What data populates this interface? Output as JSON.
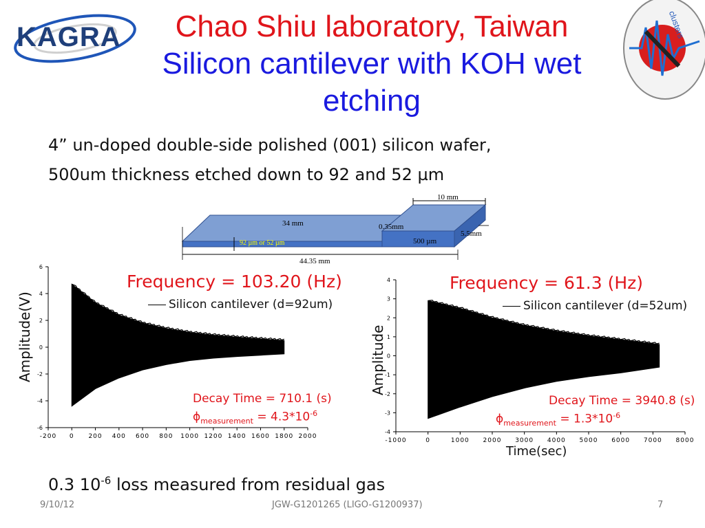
{
  "header": {
    "logo_text": "KAGRA",
    "title_line1": "Chao Shiu laboratory, Taiwan",
    "title_line2": "Silicon cantilever with KOH wet etching",
    "emblem_text": "clusters"
  },
  "body": {
    "line1": "4” un-doped double-side polished (001) silicon wafer,",
    "line2": "500um thickness etched down to 92 and 52 µm"
  },
  "diagram": {
    "dim_width": "10 mm",
    "dim_thin_length": "34 mm",
    "dim_step": "0.35mm",
    "dim_thick_length": "5.5mm",
    "dim_thin_thickness": "92 µm  or 52 µm",
    "dim_thick_thickness": "500 µm",
    "dim_total_length": "44.35 mm",
    "colors": {
      "top": "#7f9fd3",
      "side": "#4472c4",
      "edge": "#2f4f8f",
      "label_yellow": "#ffff00"
    }
  },
  "charts": {
    "left": {
      "freq_label": "Frequency = 103.20 (Hz)",
      "legend": "Silicon cantilever (d=92um)",
      "decay": "Decay Time = 710.1 (s)",
      "phi_symbol": "ϕ",
      "phi_sub": "measurement",
      "phi_value": " = 4.3*10",
      "phi_exp": "-6",
      "ylabel": "Amplitude(V)"
    },
    "right": {
      "freq_label": "Frequency = 61.3 (Hz)",
      "legend": "Silicon cantilever (d=52um)",
      "decay": "Decay Time = 3940.8 (s)",
      "phi_symbol": "ϕ",
      "phi_sub": "measurement",
      "phi_value": " = 1.3*10",
      "phi_exp": "-6",
      "ylabel": "Amplitude",
      "xlabel": "Time(sec)"
    }
  },
  "chart_data": [
    {
      "type": "area",
      "title": "Frequency = 103.20 (Hz)",
      "xlabel": "",
      "ylabel": "Amplitude(V)",
      "xlim": [
        -200,
        2000
      ],
      "ylim": [
        -6,
        6
      ],
      "x_ticks": [
        -200,
        0,
        200,
        400,
        600,
        800,
        1000,
        1200,
        1400,
        1600,
        1800,
        2000
      ],
      "y_ticks": [
        -6,
        -4,
        -2,
        0,
        2,
        4,
        6
      ],
      "series": [
        {
          "name": "Silicon cantilever (d=92um)",
          "x": [
            0,
            200,
            400,
            600,
            800,
            1000,
            1200,
            1400,
            1600,
            1800
          ],
          "upper": [
            4.7,
            3.3,
            2.4,
            1.8,
            1.4,
            1.1,
            0.9,
            0.75,
            0.62,
            0.5
          ],
          "lower": [
            -4.4,
            -3.1,
            -2.3,
            -1.7,
            -1.3,
            -1.0,
            -0.82,
            -0.7,
            -0.6,
            -0.5
          ]
        }
      ],
      "grid": false,
      "legend_placement": "top-right"
    },
    {
      "type": "area",
      "title": "Frequency = 61.3 (Hz)",
      "xlabel": "Time(sec)",
      "ylabel": "Amplitude",
      "xlim": [
        -1000,
        8000
      ],
      "ylim": [
        -4,
        4
      ],
      "x_ticks": [
        -1000,
        0,
        1000,
        2000,
        3000,
        4000,
        5000,
        6000,
        7000,
        8000
      ],
      "y_ticks": [
        -4,
        -3,
        -2,
        -1,
        0,
        1,
        2,
        3,
        4
      ],
      "series": [
        {
          "name": "Silicon cantilever (d=52um)",
          "x": [
            0,
            1000,
            2000,
            3000,
            4000,
            5000,
            6000,
            7200
          ],
          "upper": [
            2.9,
            2.5,
            2.0,
            1.6,
            1.3,
            1.05,
            0.85,
            0.6
          ],
          "lower": [
            -3.3,
            -2.7,
            -2.15,
            -1.7,
            -1.35,
            -1.1,
            -0.9,
            -0.6
          ]
        }
      ],
      "grid": false,
      "legend_placement": "top-right"
    }
  ],
  "bottom": {
    "loss_prefix": "0.3 10",
    "loss_exp": "-6",
    "loss_suffix": " loss measured from residual gas"
  },
  "footer": {
    "date": "9/10/12",
    "doc_id": "JGW-G1201265 (LIGO-G1200937)",
    "page": "7"
  }
}
